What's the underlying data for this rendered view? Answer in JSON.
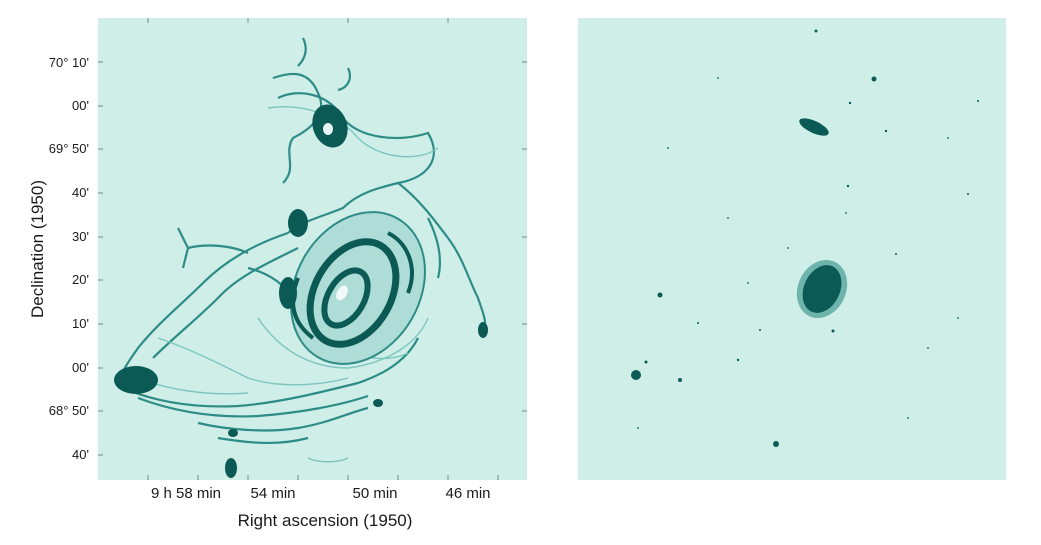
{
  "left_panel": {
    "y_axis": {
      "title": "Declination (1950)",
      "ticks": [
        "70° 10'",
        "00'",
        "69° 50'",
        "40'",
        "30'",
        "20'",
        "10'",
        "00'",
        "68° 50'",
        "40'"
      ]
    },
    "x_axis": {
      "title": "Right ascension (1950)",
      "ticks": [
        "9 h 58 min",
        "54 min",
        "50 min",
        "46 min"
      ]
    }
  },
  "colors": {
    "background": "#cfeee8",
    "dark": "#0b5a55",
    "mid": "#2e8c86",
    "light": "#7cc6bf"
  }
}
